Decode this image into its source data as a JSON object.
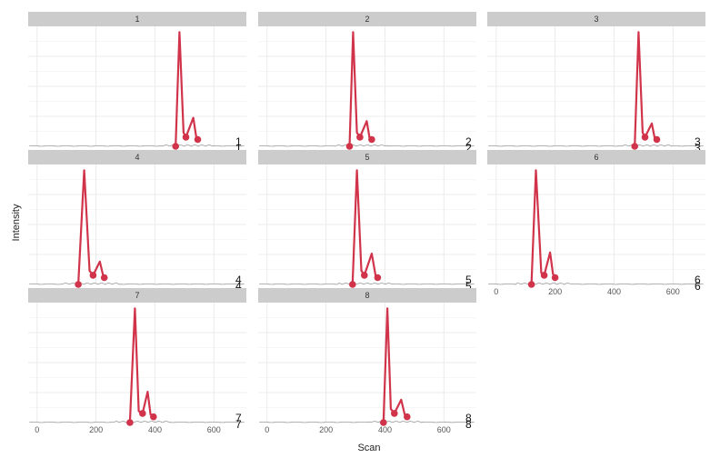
{
  "chart_data": {
    "type": "line",
    "xlabel": "Scan",
    "ylabel": "Intensity",
    "xlim": [
      -30,
      710
    ],
    "ylim": [
      0,
      1.05
    ],
    "x_ticks": [
      0,
      200,
      400,
      600
    ],
    "x_tick_labels": [
      "0",
      "200",
      "400",
      "600"
    ],
    "facet_columns": 3,
    "grid": true,
    "colors": {
      "peak": "#d1344a",
      "baseline": "#9a9a9a",
      "strip": "#cccccc",
      "grid": "#ebebeb"
    },
    "panels": [
      {
        "label": "1",
        "end_labels": [
          "1",
          "1"
        ],
        "peak": {
          "x": [
            470,
            483,
            497,
            505,
            530,
            540,
            550
          ],
          "y": [
            0,
            1.0,
            0.12,
            0.08,
            0.25,
            0.08,
            0.06
          ]
        },
        "points": {
          "x": [
            470,
            505,
            545
          ],
          "y": [
            0,
            0.08,
            0.06
          ]
        }
      },
      {
        "label": "2",
        "end_labels": [
          "2",
          "2"
        ],
        "peak": {
          "x": [
            280,
            292,
            305,
            315,
            338,
            348,
            358
          ],
          "y": [
            0,
            1.0,
            0.12,
            0.08,
            0.22,
            0.07,
            0.06
          ]
        },
        "points": {
          "x": [
            280,
            315,
            355
          ],
          "y": [
            0,
            0.08,
            0.06
          ]
        }
      },
      {
        "label": "3",
        "end_labels": [
          "3",
          "3"
        ],
        "peak": {
          "x": [
            470,
            483,
            497,
            505,
            528,
            538,
            548
          ],
          "y": [
            0,
            1.0,
            0.12,
            0.08,
            0.2,
            0.07,
            0.06
          ]
        },
        "points": {
          "x": [
            470,
            505,
            545
          ],
          "y": [
            0,
            0.08,
            0.06
          ]
        }
      },
      {
        "label": "4",
        "end_labels": [
          "4",
          "4"
        ],
        "peak": {
          "x": [
            140,
            160,
            178,
            190,
            213,
            225,
            232
          ],
          "y": [
            0,
            1.0,
            0.12,
            0.08,
            0.2,
            0.07,
            0.06
          ]
        },
        "points": {
          "x": [
            140,
            190,
            228
          ],
          "y": [
            0,
            0.08,
            0.06
          ]
        }
      },
      {
        "label": "5",
        "end_labels": [
          "5",
          "5"
        ],
        "peak": {
          "x": [
            290,
            305,
            320,
            330,
            355,
            368,
            378
          ],
          "y": [
            0,
            1.0,
            0.12,
            0.08,
            0.27,
            0.08,
            0.06
          ]
        },
        "points": {
          "x": [
            290,
            330,
            375
          ],
          "y": [
            0,
            0.08,
            0.06
          ]
        }
      },
      {
        "label": "6",
        "end_labels": [
          "6",
          "6"
        ],
        "peak": {
          "x": [
            120,
            135,
            153,
            163,
            183,
            193,
            203
          ],
          "y": [
            0,
            1.0,
            0.1,
            0.08,
            0.28,
            0.09,
            0.06
          ]
        },
        "points": {
          "x": [
            120,
            163,
            200
          ],
          "y": [
            0,
            0.08,
            0.06
          ]
        }
      },
      {
        "label": "7",
        "end_labels": [
          "7",
          "7"
        ],
        "peak": {
          "x": [
            315,
            332,
            345,
            358,
            375,
            385,
            397
          ],
          "y": [
            0,
            1.0,
            0.1,
            0.08,
            0.27,
            0.07,
            0.05
          ]
        },
        "points": {
          "x": [
            315,
            358,
            395
          ],
          "y": [
            0,
            0.08,
            0.05
          ]
        }
      },
      {
        "label": "8",
        "end_labels": [
          "8",
          "8"
        ],
        "peak": {
          "x": [
            395,
            408,
            420,
            432,
            455,
            467,
            478
          ],
          "y": [
            0,
            1.0,
            0.12,
            0.08,
            0.2,
            0.07,
            0.05
          ]
        },
        "points": {
          "x": [
            395,
            432,
            475
          ],
          "y": [
            0,
            0.08,
            0.05
          ]
        }
      }
    ]
  }
}
